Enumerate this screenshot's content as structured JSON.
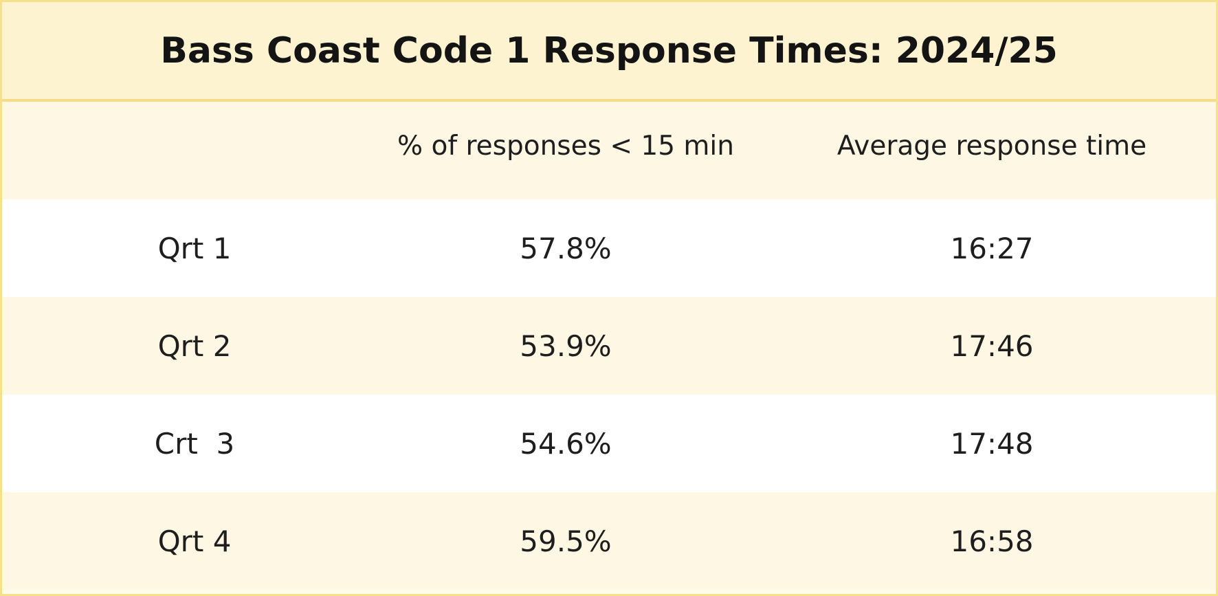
{
  "chart_data": {
    "type": "table",
    "title": "Bass Coast Code 1 Response Times: 2024/25",
    "columns": [
      "",
      "% of responses < 15 min",
      "Average response time"
    ],
    "rows": [
      {
        "label": "Qrt 1",
        "pct_under_15": "57.8%",
        "avg_time": "16:27"
      },
      {
        "label": "Qrt 2",
        "pct_under_15": "53.9%",
        "avg_time": "17:46"
      },
      {
        "label": "Crt  3",
        "pct_under_15": "54.6%",
        "avg_time": "17:48"
      },
      {
        "label": "Qrt 4",
        "pct_under_15": "59.5%",
        "avg_time": "16:58"
      }
    ]
  },
  "colors": {
    "border": "#f7e08c",
    "title_band": "#fdf3d0",
    "cream_row": "#fef7e4",
    "white_row": "#ffffff",
    "text": "#1e1e1e"
  }
}
